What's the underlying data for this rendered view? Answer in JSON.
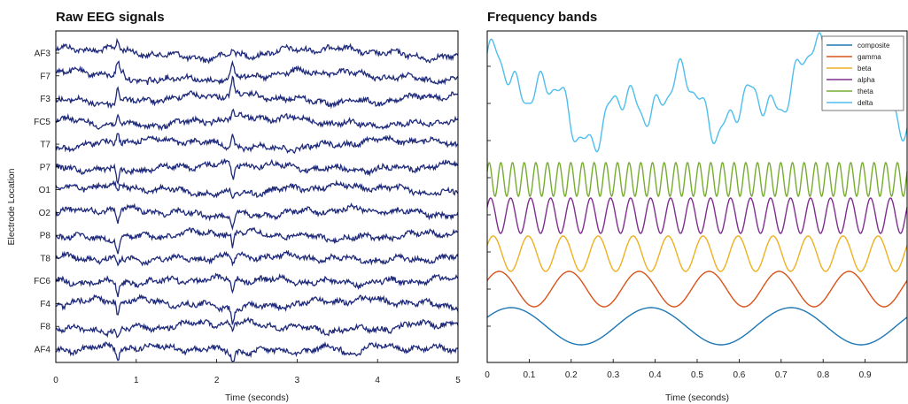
{
  "chart_data": [
    {
      "type": "line",
      "title": "Raw EEG signals",
      "xlabel": "Time (seconds)",
      "ylabel": "Electrode Location",
      "xlim": [
        0,
        5
      ],
      "xticks": [
        "0",
        "1",
        "2",
        "3",
        "4",
        "5"
      ],
      "color": "#1f2a7a",
      "electrodes": [
        "AF3",
        "F7",
        "F3",
        "FC5",
        "T7",
        "P7",
        "O1",
        "O2",
        "P8",
        "T8",
        "FC6",
        "F4",
        "F8",
        "AF4"
      ],
      "spike_times": [
        0.77,
        2.2
      ]
    },
    {
      "type": "line",
      "title": "Frequency bands",
      "xlabel": "Time (seconds)",
      "xlim": [
        0,
        1
      ],
      "xticks": [
        "0",
        "0.1",
        "0.2",
        "0.3",
        "0.4",
        "0.5",
        "0.6",
        "0.7",
        "0.8",
        "0.9"
      ],
      "legend_position": "top-right",
      "series": [
        {
          "name": "composite",
          "color": "#1f77b4",
          "freq_hz": 3,
          "amplitude": 1
        },
        {
          "name": "gamma",
          "color": "#d95319",
          "freq_hz": 6,
          "amplitude": 1
        },
        {
          "name": "beta",
          "color": "#edb120",
          "freq_hz": 12,
          "amplitude": 1
        },
        {
          "name": "alpha",
          "color": "#7e2f8e",
          "freq_hz": 21,
          "amplitude": 1
        },
        {
          "name": "theta",
          "color": "#77ac30",
          "freq_hz": 36,
          "amplitude": 1
        },
        {
          "name": "delta",
          "color": "#4dbeee",
          "freq_hz": 0,
          "amplitude": 1
        }
      ]
    }
  ]
}
